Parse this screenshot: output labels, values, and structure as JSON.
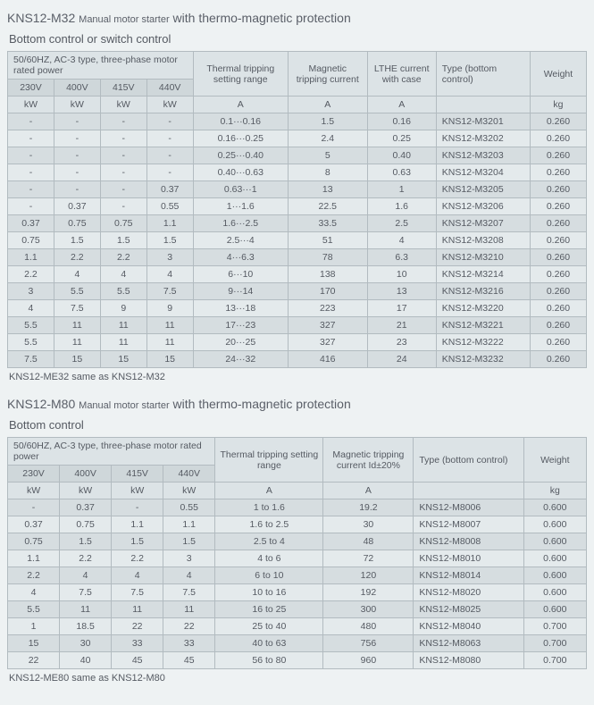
{
  "m32": {
    "title_product": "KNS12-M32",
    "title_mid": "Manual motor starter",
    "title_suffix": "with thermo-magnetic protection",
    "subtitle": "Bottom control or switch control",
    "power_header": "50/60HZ, AC-3 type, three-phase motor rated power",
    "col_thermal": "Thermal tripping setting range",
    "col_magnetic": "Magnetic tripping current",
    "col_lthe": "LTHE current with case",
    "col_type": "Type (bottom control)",
    "col_weight": "Weight",
    "volt_labels": [
      "230V",
      "400V",
      "415V",
      "440V"
    ],
    "unit_kw": "kW",
    "unit_a": "A",
    "unit_kg": "kg",
    "rows": [
      [
        "-",
        "-",
        "-",
        "-",
        "0.1···0.16",
        "1.5",
        "0.16",
        "KNS12-M3201",
        "0.260"
      ],
      [
        "-",
        "-",
        "-",
        "-",
        "0.16···0.25",
        "2.4",
        "0.25",
        "KNS12-M3202",
        "0.260"
      ],
      [
        "-",
        "-",
        "-",
        "-",
        "0.25···0.40",
        "5",
        "0.40",
        "KNS12-M3203",
        "0.260"
      ],
      [
        "-",
        "-",
        "-",
        "-",
        "0.40···0.63",
        "8",
        "0.63",
        "KNS12-M3204",
        "0.260"
      ],
      [
        "-",
        "-",
        "-",
        "0.37",
        "0.63···1",
        "13",
        "1",
        "KNS12-M3205",
        "0.260"
      ],
      [
        "-",
        "0.37",
        "-",
        "0.55",
        "1···1.6",
        "22.5",
        "1.6",
        "KNS12-M3206",
        "0.260"
      ],
      [
        "0.37",
        "0.75",
        "0.75",
        "1.1",
        "1.6···2.5",
        "33.5",
        "2.5",
        "KNS12-M3207",
        "0.260"
      ],
      [
        "0.75",
        "1.5",
        "1.5",
        "1.5",
        "2.5···4",
        "51",
        "4",
        "KNS12-M3208",
        "0.260"
      ],
      [
        "1.1",
        "2.2",
        "2.2",
        "3",
        "4···6.3",
        "78",
        "6.3",
        "KNS12-M3210",
        "0.260"
      ],
      [
        "2.2",
        "4",
        "4",
        "4",
        "6···10",
        "138",
        "10",
        "KNS12-M3214",
        "0.260"
      ],
      [
        "3",
        "5.5",
        "5.5",
        "7.5",
        "9···14",
        "170",
        "13",
        "KNS12-M3216",
        "0.260"
      ],
      [
        "4",
        "7.5",
        "9",
        "9",
        "13···18",
        "223",
        "17",
        "KNS12-M3220",
        "0.260"
      ],
      [
        "5.5",
        "11",
        "11",
        "11",
        "17···23",
        "327",
        "21",
        "KNS12-M3221",
        "0.260"
      ],
      [
        "5.5",
        "11",
        "11",
        "11",
        "20···25",
        "327",
        "23",
        "KNS12-M3222",
        "0.260"
      ],
      [
        "7.5",
        "15",
        "15",
        "15",
        "24···32",
        "416",
        "24",
        "KNS12-M3232",
        "0.260"
      ]
    ],
    "note": "KNS12-ME32 same as KNS12-M32"
  },
  "m80": {
    "title_product": "KNS12-M80",
    "title_mid": "Manual motor starter",
    "title_suffix": "with thermo-magnetic protection",
    "subtitle": "Bottom control",
    "power_header": "50/60HZ, AC-3 type, three-phase motor rated power",
    "col_thermal": "Thermal tripping setting range",
    "col_magnetic": "Magnetic tripping current Id±20%",
    "col_type": "Type (bottom control)",
    "col_weight": "Weight",
    "volt_labels": [
      "230V",
      "400V",
      "415V",
      "440V"
    ],
    "unit_kw": "kW",
    "unit_a": "A",
    "unit_kg": "kg",
    "rows": [
      [
        "-",
        "0.37",
        "-",
        "0.55",
        "1 to 1.6",
        "19.2",
        "KNS12-M8006",
        "0.600"
      ],
      [
        "0.37",
        "0.75",
        "1.1",
        "1.1",
        "1.6 to 2.5",
        "30",
        "KNS12-M8007",
        "0.600"
      ],
      [
        "0.75",
        "1.5",
        "1.5",
        "1.5",
        "2.5 to 4",
        "48",
        "KNS12-M8008",
        "0.600"
      ],
      [
        "1.1",
        "2.2",
        "2.2",
        "3",
        "4 to 6",
        "72",
        "KNS12-M8010",
        "0.600"
      ],
      [
        "2.2",
        "4",
        "4",
        "4",
        "6 to 10",
        "120",
        "KNS12-M8014",
        "0.600"
      ],
      [
        "4",
        "7.5",
        "7.5",
        "7.5",
        "10 to 16",
        "192",
        "KNS12-M8020",
        "0.600"
      ],
      [
        "5.5",
        "11",
        "11",
        "11",
        "16 to 25",
        "300",
        "KNS12-M8025",
        "0.600"
      ],
      [
        "1",
        "18.5",
        "22",
        "22",
        "25 to 40",
        "480",
        "KNS12-M8040",
        "0.700"
      ],
      [
        "15",
        "30",
        "33",
        "33",
        "40 to 63",
        "756",
        "KNS12-M8063",
        "0.700"
      ],
      [
        "22",
        "40",
        "45",
        "45",
        "56 to 80",
        "960",
        "KNS12-M8080",
        "0.700"
      ]
    ],
    "note": "KNS12-ME80 same as KNS12-M80"
  }
}
